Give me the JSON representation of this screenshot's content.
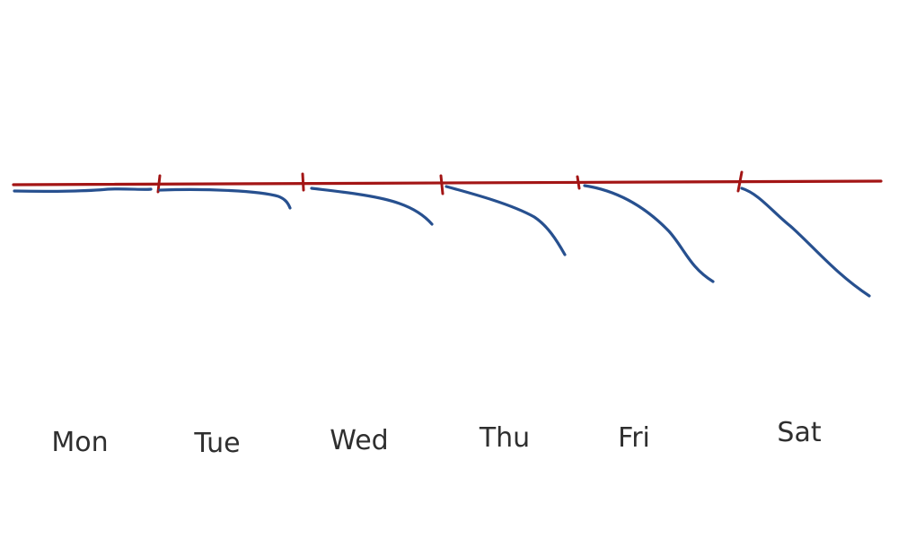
{
  "colors": {
    "baseline": "#a31515",
    "curve": "#27508f",
    "label": "#2f2f2f",
    "background": "#ffffff"
  },
  "days": [
    {
      "key": "mon",
      "label": "Mon"
    },
    {
      "key": "tue",
      "label": "Tue"
    },
    {
      "key": "wed",
      "label": "Wed"
    },
    {
      "key": "thu",
      "label": "Thu"
    },
    {
      "key": "fri",
      "label": "Fri"
    },
    {
      "key": "sat",
      "label": "Sat"
    }
  ]
}
